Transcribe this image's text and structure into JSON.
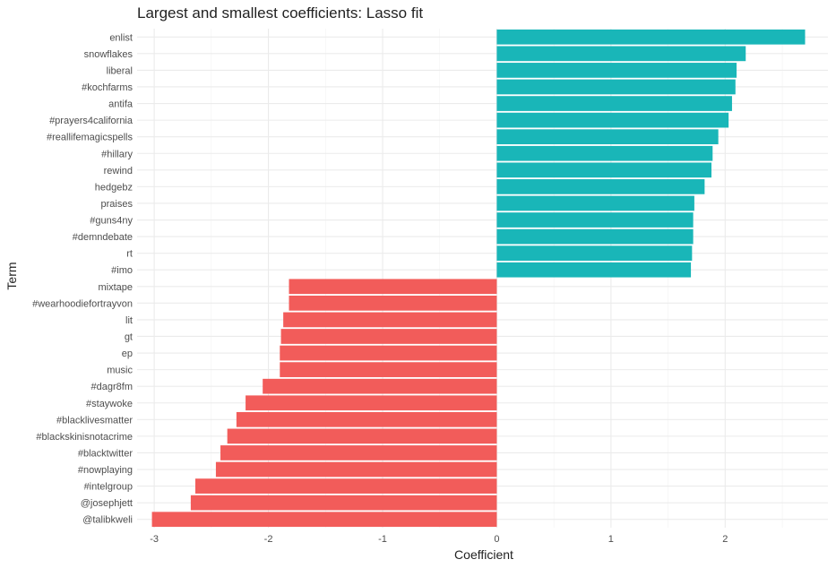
{
  "chart_data": {
    "type": "bar",
    "orientation": "horizontal",
    "title": "Largest and smallest coefficients: Lasso fit",
    "xlabel": "Coefficient",
    "ylabel": "Term",
    "xlim": [
      -3.15,
      2.9
    ],
    "x_ticks": [
      -3,
      -2,
      -1,
      0,
      1,
      2
    ],
    "grid": true,
    "legend": "none",
    "colors": {
      "positive": "#19b6b8",
      "negative": "#f25c5a"
    },
    "categories": [
      "enlist",
      "snowflakes",
      "liberal",
      "#kochfarms",
      "antifa",
      "#prayers4california",
      "#reallifemagicspells",
      "#hillary",
      "rewind",
      "hedgebz",
      "praises",
      "#guns4ny",
      "#demndebate",
      "rt",
      "#imo",
      "mixtape",
      "#wearhoodiefortrayvon",
      "lit",
      "gt",
      "ep",
      "music",
      "#dagr8fm",
      "#staywoke",
      "#blacklivesmatter",
      "#blackskinisnotacrime",
      "#blacktwitter",
      "#nowplaying",
      "#intelgroup",
      "@josephjett",
      "@talibkweli"
    ],
    "values": [
      2.7,
      2.18,
      2.1,
      2.09,
      2.06,
      2.03,
      1.94,
      1.89,
      1.88,
      1.82,
      1.73,
      1.72,
      1.72,
      1.71,
      1.7,
      -1.82,
      -1.82,
      -1.87,
      -1.89,
      -1.9,
      -1.9,
      -2.05,
      -2.2,
      -2.28,
      -2.36,
      -2.42,
      -2.46,
      -2.64,
      -2.68,
      -3.02
    ]
  }
}
